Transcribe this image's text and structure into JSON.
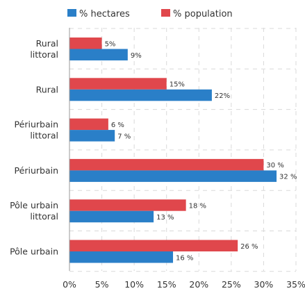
{
  "chart_data": {
    "type": "bar",
    "orientation": "horizontal",
    "categories": [
      [
        "Rural",
        "littoral"
      ],
      [
        "Rural"
      ],
      [
        "Périurbain",
        "littoral"
      ],
      [
        "Périurbain"
      ],
      [
        "Pôle urbain",
        "littoral"
      ],
      [
        "Pôle urbain"
      ]
    ],
    "series": [
      {
        "name": "% population",
        "color": "#e0474c",
        "values": [
          5,
          15,
          6,
          30,
          18,
          26
        ],
        "labels": [
          "5%",
          "15%",
          "6 %",
          "30 %",
          "18 %",
          "26 %"
        ]
      },
      {
        "name": "% hectares",
        "color": "#2a7fc8",
        "values": [
          9,
          22,
          7,
          32,
          13,
          16
        ],
        "labels": [
          "9%",
          "22%",
          "7 %",
          "32 %",
          "13 %",
          "16 %"
        ]
      }
    ],
    "legend_order": [
      "% hectares",
      "% population"
    ],
    "legend": "top",
    "xlim": [
      0,
      35
    ],
    "xticks": [
      "0%",
      "5%",
      "10%",
      "15%",
      "20%",
      "25%",
      "30%",
      "35%"
    ],
    "grid": true
  }
}
